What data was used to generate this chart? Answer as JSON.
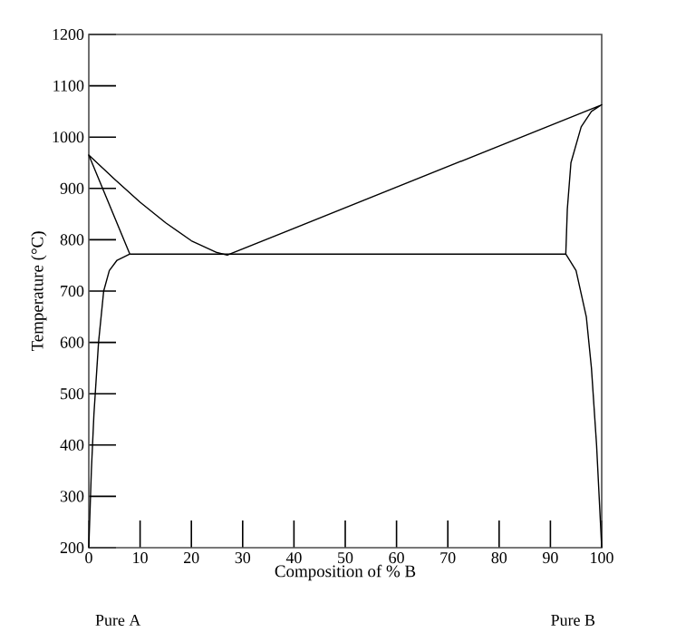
{
  "chart_data": {
    "type": "line",
    "xlabel": "Composition of % B",
    "ylabel": "Temperature (°C)",
    "xlim": [
      0,
      100
    ],
    "ylim": [
      200,
      1200
    ],
    "xticks": [
      0,
      10,
      20,
      30,
      40,
      50,
      60,
      70,
      80,
      90,
      100
    ],
    "yticks": [
      200,
      300,
      400,
      500,
      600,
      700,
      800,
      900,
      1000,
      1100,
      1200
    ],
    "grid": false,
    "marker": "none",
    "line_style": "solid",
    "annotations": [
      "Pure A",
      "Pure B"
    ],
    "series": [
      {
        "color": "#000000",
        "x": [
          0,
          0.5,
          1,
          1.9,
          2.9,
          4,
          5.5,
          8,
          0,
          5,
          10,
          15,
          20,
          25,
          27,
          100,
          98,
          96,
          94,
          93.3,
          93,
          95,
          97,
          98,
          99,
          100
        ],
        "values": [
          200,
          350,
          460,
          600,
          700,
          740,
          760,
          772,
          965,
          918,
          873,
          833,
          798,
          775,
          770,
          1063,
          1050,
          1020,
          950,
          860,
          772,
          740,
          650,
          550,
          400,
          200
        ]
      },
      {
        "color": "#000000",
        "x": [
          8,
          93
        ],
        "values": [
          772,
          772
        ]
      }
    ]
  }
}
